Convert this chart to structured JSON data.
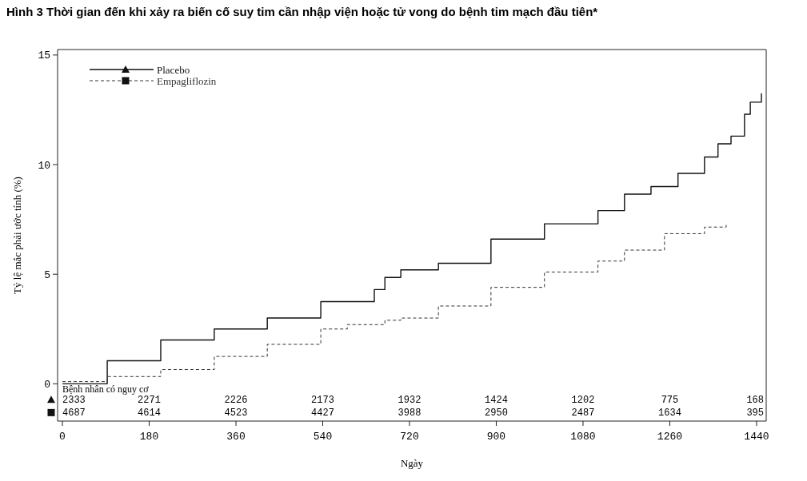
{
  "chart_data": {
    "type": "step",
    "title": "Hình 3  Thời gian đến khi xảy ra biến cố suy tim cần nhập viện hoặc tử vong do bệnh tim mạch đầu tiên*",
    "xlabel": "Ngày",
    "ylabel": "Tỷ lệ mắc phải ước tính (%)",
    "xlim": [
      -10,
      1460
    ],
    "ylim": [
      -1.7,
      15.25
    ],
    "xticks": [
      0,
      180,
      360,
      540,
      720,
      900,
      1080,
      1260,
      1440
    ],
    "yticks": [
      0,
      5,
      10,
      15
    ],
    "legend": "top left",
    "series": [
      {
        "name": "Placebo",
        "color": "#111111",
        "line_style": "solid",
        "x": [
          0,
          93,
          204,
          315,
          425,
          536,
          647,
          669,
          702,
          780,
          889,
          1000,
          1111,
          1166,
          1221,
          1277,
          1332,
          1360,
          1387,
          1415,
          1427,
          1450
        ],
        "values": [
          0,
          1.05,
          2.0,
          2.5,
          3.0,
          3.75,
          4.3,
          4.85,
          5.2,
          5.5,
          6.6,
          7.3,
          7.9,
          8.65,
          9.0,
          9.6,
          10.35,
          10.95,
          11.3,
          12.3,
          12.85,
          13.25
        ]
      },
      {
        "name": "Empagliflozin",
        "color": "#333333",
        "line_style": "dashed",
        "x": [
          0,
          93,
          204,
          315,
          425,
          536,
          591,
          669,
          702,
          780,
          889,
          1000,
          1111,
          1166,
          1249,
          1332,
          1377
        ],
        "values": [
          0.1,
          0.33,
          0.65,
          1.25,
          1.8,
          2.5,
          2.7,
          2.9,
          3.0,
          3.55,
          4.4,
          5.1,
          5.6,
          6.1,
          6.85,
          7.15,
          7.25
        ]
      }
    ],
    "annotations": [
      "Bệnh nhân có nguy cơ",
      "2333 2271 2226 2173 1932 1424 1202 775 168",
      "4687 4614 4523 4427 3988 2950 2487 1634 395"
    ]
  }
}
